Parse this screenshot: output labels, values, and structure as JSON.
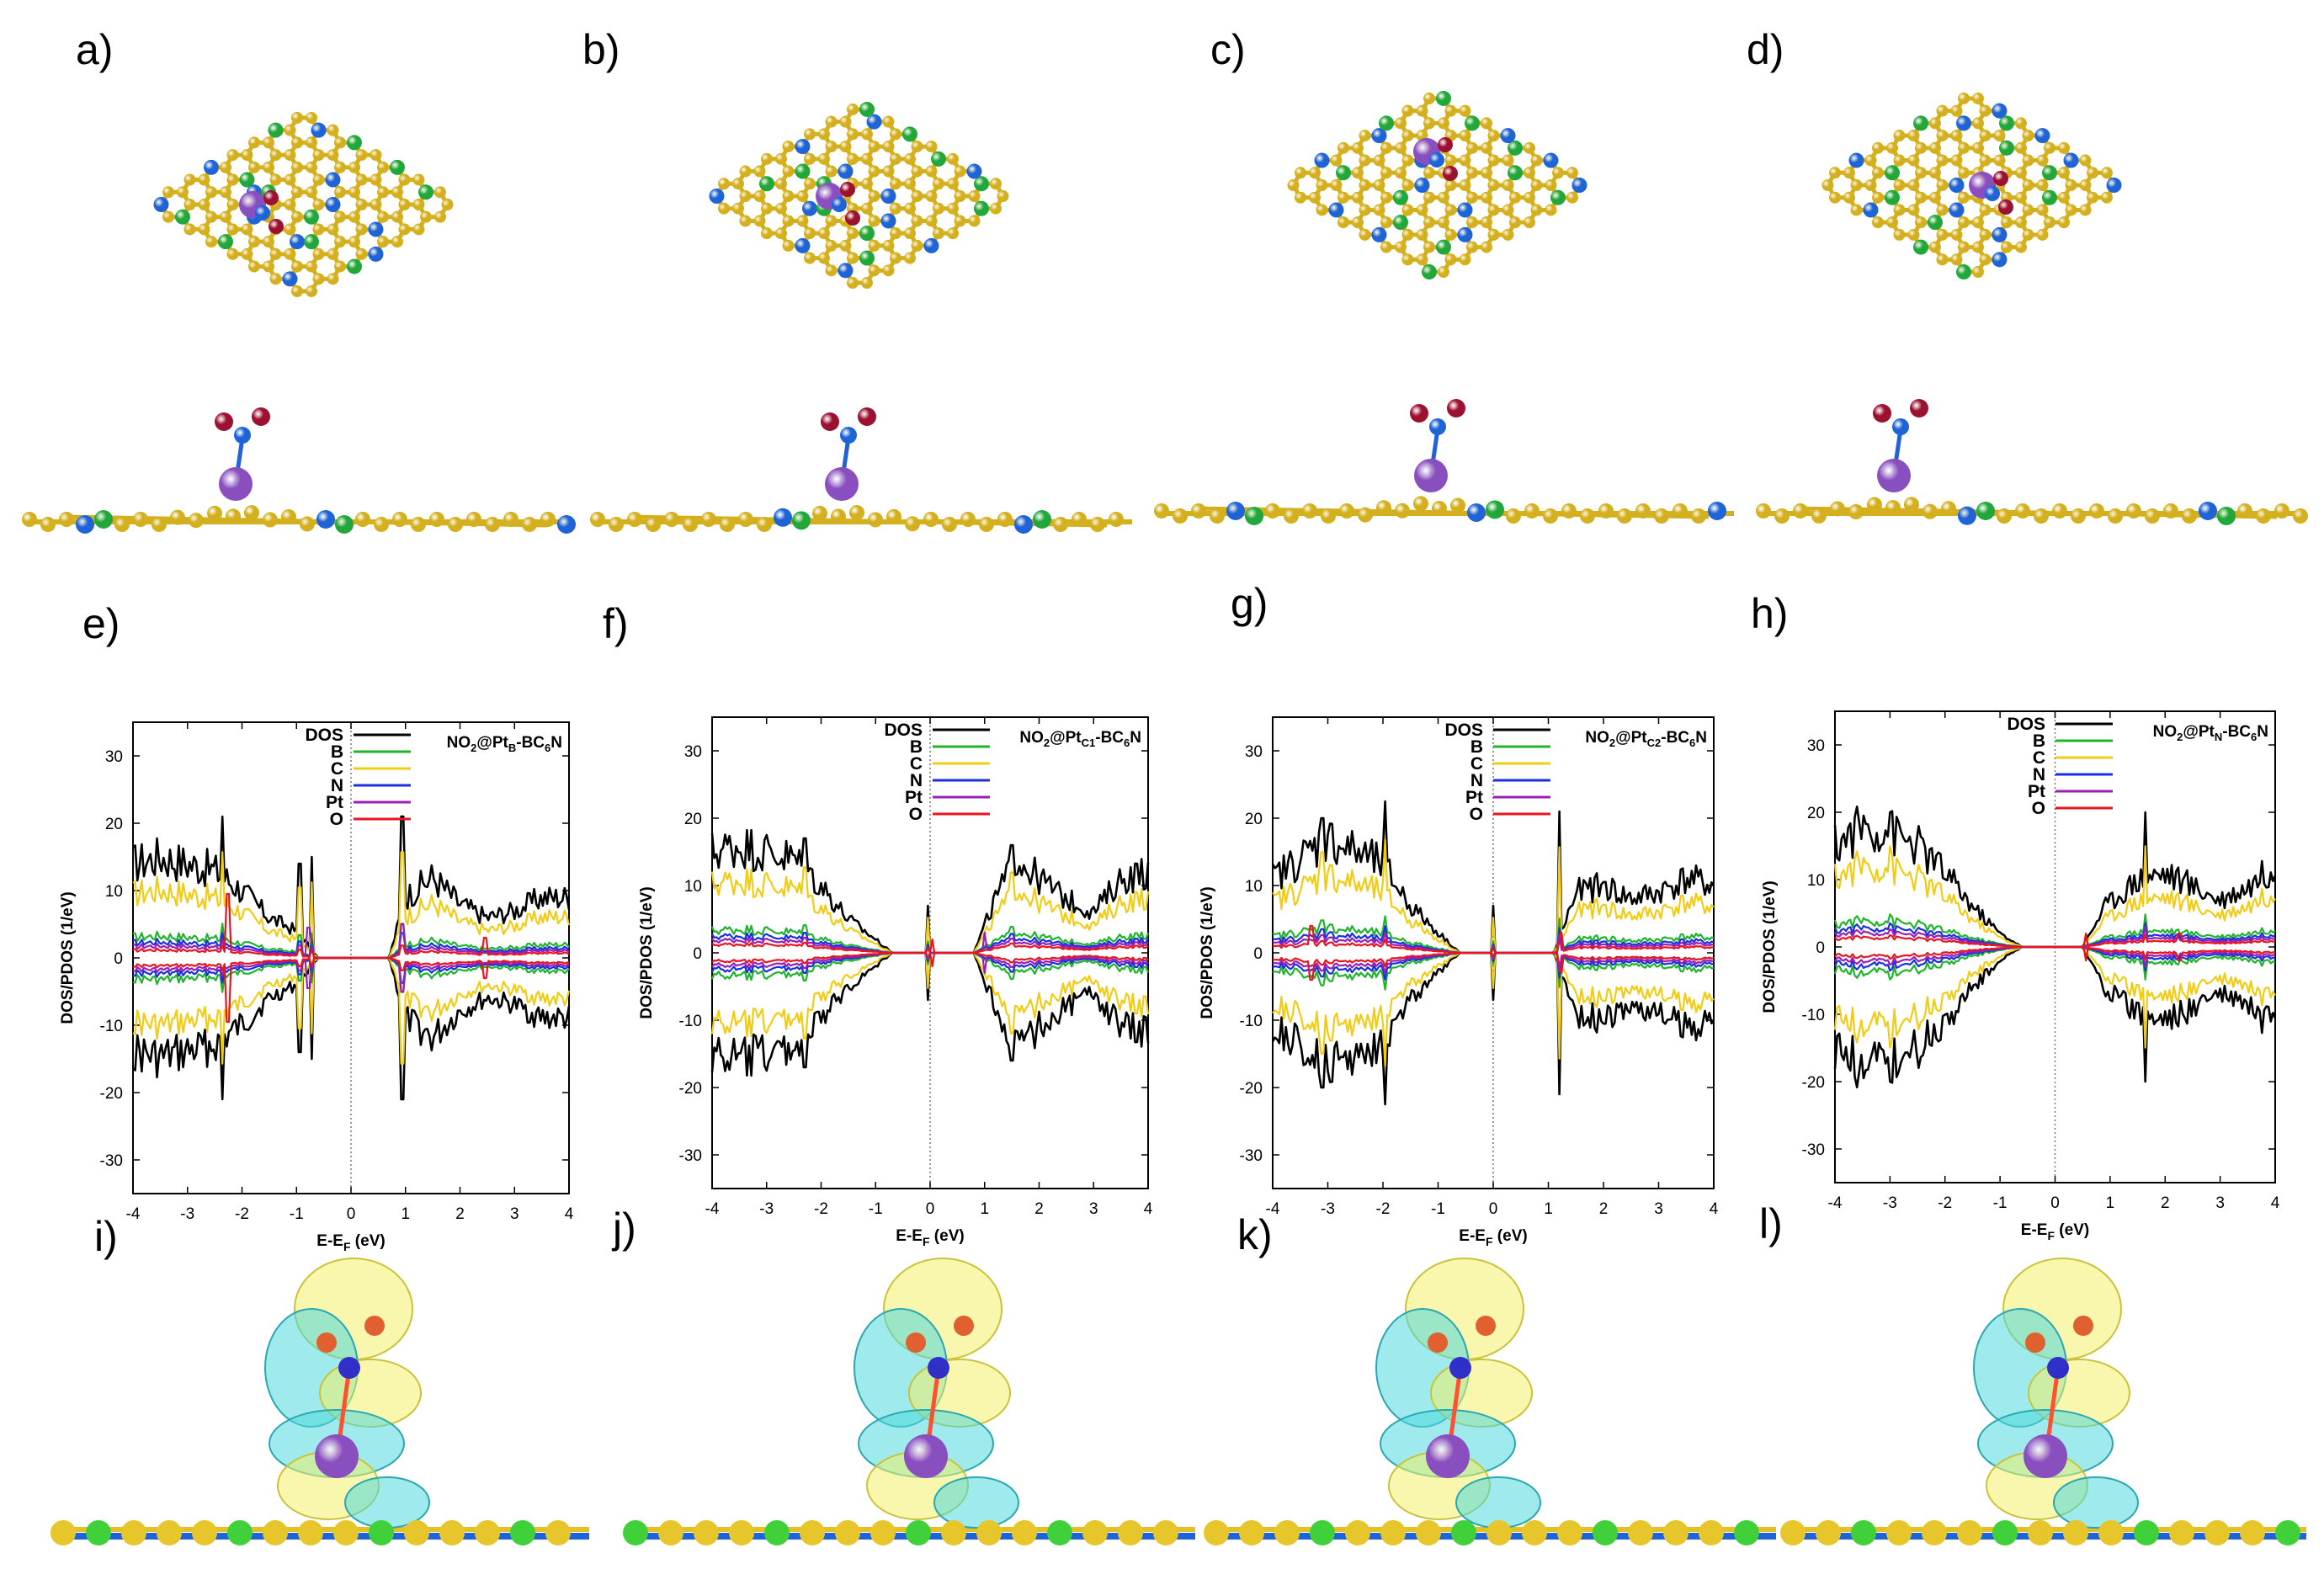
{
  "panel_labels": [
    "a)",
    "b)",
    "c)",
    "d)",
    "e)",
    "f)",
    "g)",
    "h)",
    "i)",
    "j)",
    "k)",
    "l)"
  ],
  "colors": {
    "carbon": "#d4b01e",
    "boron": "#22a83a",
    "nitrogen": "#1e64d6",
    "platinum": "#8a4fbf",
    "oxygen": "#9c1030",
    "iso_yellow": "#f3f06a",
    "iso_cyan": "#4fd8dc",
    "DOS": "#000000",
    "B": "#1fb52b",
    "C": "#f2cc14",
    "N": "#1a2fe0",
    "Pt": "#9b1fb5",
    "O": "#e8141e"
  },
  "chart_data": [
    {
      "type": "line",
      "panel": "e)",
      "title": {
        "main": "NO",
        "s1": "2",
        "mid": "@Pt",
        "s2": "B",
        "tail": "-BC",
        "s3": "6",
        "end": "N"
      },
      "xlabel": {
        "main": "E-E",
        "sub": "F",
        "tail": " (eV)"
      },
      "ylabel": "DOS/PDOS (1/eV)",
      "xlim": [
        -4,
        4
      ],
      "ylim": [
        -35,
        35
      ],
      "xticks": [
        -4,
        -3,
        -2,
        -1,
        0,
        1,
        2,
        3,
        4
      ],
      "yticks": [
        -30,
        -20,
        -10,
        0,
        10,
        20,
        30
      ],
      "legend": [
        "DOS",
        "B",
        "C",
        "N",
        "Pt",
        "O"
      ],
      "gap": [
        -0.6,
        0.7
      ],
      "peaks": [
        {
          "s": "DOS",
          "x": -2.35,
          "y": 21
        },
        {
          "s": "DOS",
          "x": -0.95,
          "y": 14
        },
        {
          "s": "DOS",
          "x": -0.72,
          "y": 15
        },
        {
          "s": "DOS",
          "x": 0.95,
          "y": 21
        },
        {
          "s": "O",
          "x": -2.25,
          "y": 9.5
        },
        {
          "s": "Pt",
          "x": -0.78,
          "y": 4.5
        },
        {
          "s": "Pt",
          "x": 0.95,
          "y": 5
        },
        {
          "s": "O",
          "x": 2.45,
          "y": 3
        }
      ],
      "envelope": [
        {
          "x": -4.0,
          "y": 14
        },
        {
          "x": -3.5,
          "y": 15
        },
        {
          "x": -3.0,
          "y": 14
        },
        {
          "x": -2.5,
          "y": 13
        },
        {
          "x": -2.0,
          "y": 10
        },
        {
          "x": -1.5,
          "y": 6
        },
        {
          "x": -1.0,
          "y": 4
        },
        {
          "x": -0.6,
          "y": 0
        },
        {
          "x": 0.7,
          "y": 0
        },
        {
          "x": 1.0,
          "y": 9
        },
        {
          "x": 1.5,
          "y": 12
        },
        {
          "x": 2.0,
          "y": 8
        },
        {
          "x": 2.5,
          "y": 6
        },
        {
          "x": 3.0,
          "y": 7
        },
        {
          "x": 3.5,
          "y": 9
        },
        {
          "x": 4.0,
          "y": 9
        }
      ]
    },
    {
      "type": "line",
      "panel": "f)",
      "title": {
        "main": "NO",
        "s1": "2",
        "mid": "@Pt",
        "s2": "C1",
        "tail": "-BC",
        "s3": "6",
        "end": "N"
      },
      "xlabel": {
        "main": "E-E",
        "sub": "F",
        "tail": " (eV)"
      },
      "ylabel": "DOS/PDOS (1/eV)",
      "xlim": [
        -4,
        4
      ],
      "ylim": [
        -35,
        35
      ],
      "xticks": [
        -4,
        -3,
        -2,
        -1,
        0,
        1,
        2,
        3,
        4
      ],
      "yticks": [
        -30,
        -20,
        -10,
        0,
        10,
        20,
        30
      ],
      "legend": [
        "DOS",
        "B",
        "C",
        "N",
        "Pt",
        "O"
      ],
      "gap": [
        -0.7,
        0.8
      ],
      "peaks": [
        {
          "s": "DOS",
          "x": -2.3,
          "y": 17
        },
        {
          "s": "DOS",
          "x": -0.05,
          "y": 7
        },
        {
          "s": "DOS",
          "x": 1.5,
          "y": 16
        },
        {
          "s": "Pt",
          "x": 1.0,
          "y": 3
        },
        {
          "s": "O",
          "x": 0.05,
          "y": 2
        }
      ],
      "envelope": [
        {
          "x": -4.0,
          "y": 15
        },
        {
          "x": -3.5,
          "y": 16
        },
        {
          "x": -3.0,
          "y": 15
        },
        {
          "x": -2.5,
          "y": 14
        },
        {
          "x": -2.0,
          "y": 10
        },
        {
          "x": -1.5,
          "y": 5
        },
        {
          "x": -1.0,
          "y": 2
        },
        {
          "x": -0.7,
          "y": 0
        },
        {
          "x": 0.8,
          "y": 0
        },
        {
          "x": 1.2,
          "y": 8
        },
        {
          "x": 1.6,
          "y": 14
        },
        {
          "x": 2.0,
          "y": 11
        },
        {
          "x": 2.5,
          "y": 8
        },
        {
          "x": 3.0,
          "y": 6
        },
        {
          "x": 3.5,
          "y": 11
        },
        {
          "x": 4.0,
          "y": 12
        }
      ]
    },
    {
      "type": "line",
      "panel": "g)",
      "title": {
        "main": "NO",
        "s1": "2",
        "mid": "@Pt",
        "s2": "C2",
        "tail": "-BC",
        "s3": "6",
        "end": "N"
      },
      "xlabel": {
        "main": "E-E",
        "sub": "F",
        "tail": " (eV)"
      },
      "ylabel": "DOS/PDOS (1/eV)",
      "xlim": [
        -4,
        4
      ],
      "ylim": [
        -35,
        35
      ],
      "xticks": [
        -4,
        -3,
        -2,
        -1,
        0,
        1,
        2,
        3,
        4
      ],
      "yticks": [
        -30,
        -20,
        -10,
        0,
        10,
        20,
        30
      ],
      "legend": [
        "DOS",
        "B",
        "C",
        "N",
        "Pt",
        "O"
      ],
      "gap": [
        -0.6,
        1.1
      ],
      "peaks": [
        {
          "s": "DOS",
          "x": -1.95,
          "y": 22.5
        },
        {
          "s": "DOS",
          "x": -3.1,
          "y": 20
        },
        {
          "s": "DOS",
          "x": 1.2,
          "y": 21
        },
        {
          "s": "DOS",
          "x": 0.0,
          "y": 7
        },
        {
          "s": "O",
          "x": -3.3,
          "y": 4
        },
        {
          "s": "O",
          "x": 1.25,
          "y": 3
        }
      ],
      "envelope": [
        {
          "x": -4.0,
          "y": 11
        },
        {
          "x": -3.5,
          "y": 14
        },
        {
          "x": -3.0,
          "y": 17
        },
        {
          "x": -2.5,
          "y": 15
        },
        {
          "x": -2.0,
          "y": 13
        },
        {
          "x": -1.5,
          "y": 7
        },
        {
          "x": -1.0,
          "y": 3
        },
        {
          "x": -0.6,
          "y": 0
        },
        {
          "x": 1.1,
          "y": 0
        },
        {
          "x": 1.5,
          "y": 9
        },
        {
          "x": 2.0,
          "y": 10
        },
        {
          "x": 2.5,
          "y": 8
        },
        {
          "x": 3.0,
          "y": 9
        },
        {
          "x": 3.5,
          "y": 11
        },
        {
          "x": 4.0,
          "y": 10
        }
      ]
    },
    {
      "type": "line",
      "panel": "h)",
      "title": {
        "main": "NO",
        "s1": "2",
        "mid": "@Pt",
        "s2": "N",
        "tail": "-BC",
        "s3": "6",
        "end": "N"
      },
      "xlabel": {
        "main": "E-E",
        "sub": "F",
        "tail": " (eV)"
      },
      "ylabel": "DOS/PDOS (1/eV)",
      "xlim": [
        -4,
        4
      ],
      "ylim": [
        -35,
        35
      ],
      "xticks": [
        -4,
        -3,
        -2,
        -1,
        0,
        1,
        2,
        3,
        4
      ],
      "yticks": [
        -30,
        -20,
        -10,
        0,
        10,
        20,
        30
      ],
      "legend": [
        "DOS",
        "B",
        "C",
        "N",
        "Pt",
        "O"
      ],
      "gap": [
        -0.6,
        0.5
      ],
      "peaks": [
        {
          "s": "DOS",
          "x": -3.0,
          "y": 20
        },
        {
          "s": "DOS",
          "x": 1.65,
          "y": 20
        },
        {
          "s": "Pt",
          "x": 1.65,
          "y": 3
        },
        {
          "s": "O",
          "x": 0.55,
          "y": 2
        },
        {
          "s": "O",
          "x": 2.25,
          "y": 2
        }
      ],
      "envelope": [
        {
          "x": -4.0,
          "y": 15
        },
        {
          "x": -3.5,
          "y": 18
        },
        {
          "x": -3.0,
          "y": 17
        },
        {
          "x": -2.5,
          "y": 15
        },
        {
          "x": -2.0,
          "y": 11
        },
        {
          "x": -1.5,
          "y": 6
        },
        {
          "x": -1.0,
          "y": 2
        },
        {
          "x": -0.6,
          "y": 0
        },
        {
          "x": 0.5,
          "y": 0
        },
        {
          "x": 0.9,
          "y": 6
        },
        {
          "x": 1.5,
          "y": 10
        },
        {
          "x": 2.0,
          "y": 11
        },
        {
          "x": 2.5,
          "y": 9
        },
        {
          "x": 3.0,
          "y": 7
        },
        {
          "x": 3.5,
          "y": 9
        },
        {
          "x": 4.0,
          "y": 12
        }
      ]
    }
  ]
}
